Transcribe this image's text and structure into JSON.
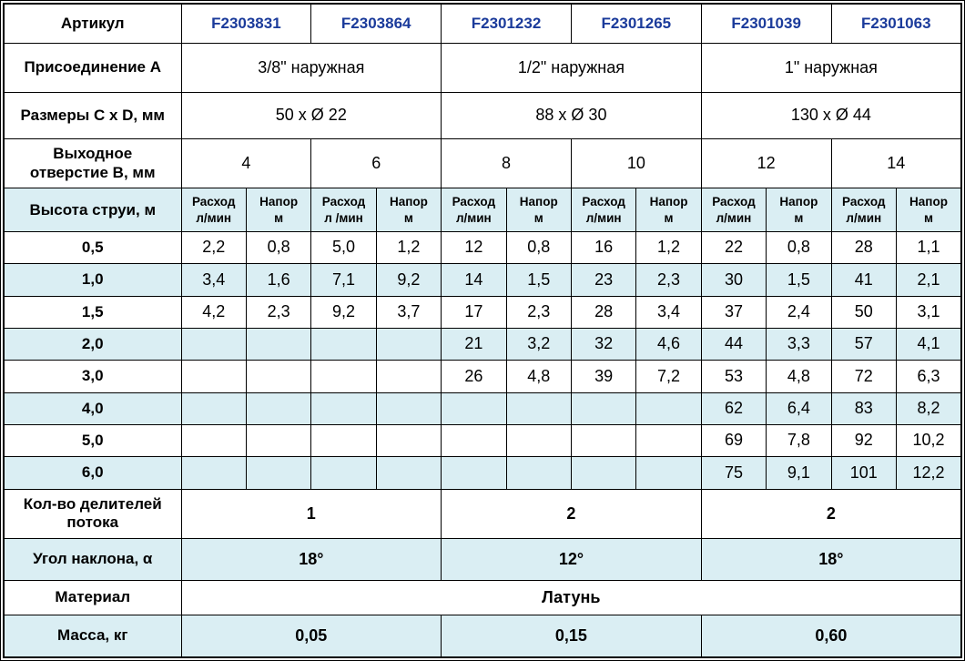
{
  "colors": {
    "row_alt_blue": "#daeef3",
    "article_blue": "#1b3b9b",
    "border_black": "#000000",
    "background": "#ffffff"
  },
  "table": {
    "rows": [
      {
        "name": "article-row",
        "alt": false,
        "cells": [
          {
            "text": "Артикул",
            "kind": "label",
            "span": 1
          },
          {
            "text": "F2303831",
            "kind": "article",
            "span": 2
          },
          {
            "text": "F2303864",
            "kind": "article",
            "span": 2
          },
          {
            "text": "F2301232",
            "kind": "article",
            "span": 2
          },
          {
            "text": "F2301265",
            "kind": "article",
            "span": 2
          },
          {
            "text": "F2301039",
            "kind": "article",
            "span": 2
          },
          {
            "text": "F2301063",
            "kind": "article",
            "span": 2
          }
        ]
      },
      {
        "name": "connection-row",
        "alt": false,
        "cells": [
          {
            "text": "Присоединение А",
            "kind": "label",
            "span": 1
          },
          {
            "text": "3/8\" наружная",
            "kind": "value",
            "span": 4
          },
          {
            "text": "1/2\" наружная",
            "kind": "value",
            "span": 4
          },
          {
            "text": "1\" наружная",
            "kind": "value",
            "span": 4
          }
        ]
      },
      {
        "name": "dimensions-row",
        "alt": false,
        "cells": [
          {
            "text": "Размеры C x D, мм",
            "kind": "label",
            "span": 1
          },
          {
            "text": "50 x Ø 22",
            "kind": "value",
            "span": 4
          },
          {
            "text": "88 x Ø 30",
            "kind": "value",
            "span": 4
          },
          {
            "text": "130 x Ø 44",
            "kind": "value",
            "span": 4
          }
        ]
      },
      {
        "name": "outlet-row",
        "alt": false,
        "cells": [
          {
            "text": "Выходное\nотверстие В, мм",
            "kind": "label",
            "span": 1
          },
          {
            "text": "4",
            "kind": "value",
            "span": 2
          },
          {
            "text": "6",
            "kind": "value",
            "span": 2
          },
          {
            "text": "8",
            "kind": "value",
            "span": 2
          },
          {
            "text": "10",
            "kind": "value",
            "span": 2
          },
          {
            "text": "12",
            "kind": "value",
            "span": 2
          },
          {
            "text": "14",
            "kind": "value",
            "span": 2
          }
        ]
      },
      {
        "name": "jet-height-header-row",
        "alt": true,
        "cells": [
          {
            "text": "Высота струи, м",
            "kind": "label",
            "span": 1
          },
          {
            "text": "Расход\nл/мин",
            "kind": "subhead",
            "span": 1
          },
          {
            "text": "Напор\nм",
            "kind": "subhead",
            "span": 1
          },
          {
            "text": "Расход\nл /мин",
            "kind": "subhead",
            "span": 1
          },
          {
            "text": "Напор\nм",
            "kind": "subhead",
            "span": 1
          },
          {
            "text": "Расход\nл/мин",
            "kind": "subhead",
            "span": 1
          },
          {
            "text": "Напор\nм",
            "kind": "subhead",
            "span": 1
          },
          {
            "text": "Расход\nл/мин",
            "kind": "subhead",
            "span": 1
          },
          {
            "text": "Напор\nм",
            "kind": "subhead",
            "span": 1
          },
          {
            "text": "Расход\nл/мин",
            "kind": "subhead",
            "span": 1
          },
          {
            "text": "Напор\nм",
            "kind": "subhead",
            "span": 1
          },
          {
            "text": "Расход\nл/мин",
            "kind": "subhead",
            "span": 1
          },
          {
            "text": "Напор\nм",
            "kind": "subhead",
            "span": 1
          }
        ]
      },
      {
        "name": "data-row-0-5",
        "alt": false,
        "cells": [
          {
            "text": "0,5",
            "kind": "label",
            "span": 1
          },
          {
            "text": "2,2",
            "kind": "value",
            "span": 1
          },
          {
            "text": "0,8",
            "kind": "value",
            "span": 1
          },
          {
            "text": "5,0",
            "kind": "value",
            "span": 1
          },
          {
            "text": "1,2",
            "kind": "value",
            "span": 1
          },
          {
            "text": "12",
            "kind": "value",
            "span": 1
          },
          {
            "text": "0,8",
            "kind": "value",
            "span": 1
          },
          {
            "text": "16",
            "kind": "value",
            "span": 1
          },
          {
            "text": "1,2",
            "kind": "value",
            "span": 1
          },
          {
            "text": "22",
            "kind": "value",
            "span": 1
          },
          {
            "text": "0,8",
            "kind": "value",
            "span": 1
          },
          {
            "text": "28",
            "kind": "value",
            "span": 1
          },
          {
            "text": "1,1",
            "kind": "value",
            "span": 1
          }
        ]
      },
      {
        "name": "data-row-1-0",
        "alt": true,
        "cells": [
          {
            "text": "1,0",
            "kind": "label",
            "span": 1
          },
          {
            "text": "3,4",
            "kind": "value",
            "span": 1
          },
          {
            "text": "1,6",
            "kind": "value",
            "span": 1
          },
          {
            "text": "7,1",
            "kind": "value",
            "span": 1
          },
          {
            "text": "9,2",
            "kind": "value",
            "span": 1
          },
          {
            "text": "14",
            "kind": "value",
            "span": 1
          },
          {
            "text": "1,5",
            "kind": "value",
            "span": 1
          },
          {
            "text": "23",
            "kind": "value",
            "span": 1
          },
          {
            "text": "2,3",
            "kind": "value",
            "span": 1
          },
          {
            "text": "30",
            "kind": "value",
            "span": 1
          },
          {
            "text": "1,5",
            "kind": "value",
            "span": 1
          },
          {
            "text": "41",
            "kind": "value",
            "span": 1
          },
          {
            "text": "2,1",
            "kind": "value",
            "span": 1
          }
        ]
      },
      {
        "name": "data-row-1-5",
        "alt": false,
        "cells": [
          {
            "text": "1,5",
            "kind": "label",
            "span": 1
          },
          {
            "text": "4,2",
            "kind": "value",
            "span": 1
          },
          {
            "text": "2,3",
            "kind": "value",
            "span": 1
          },
          {
            "text": "9,2",
            "kind": "value",
            "span": 1
          },
          {
            "text": "3,7",
            "kind": "value",
            "span": 1
          },
          {
            "text": "17",
            "kind": "value",
            "span": 1
          },
          {
            "text": "2,3",
            "kind": "value",
            "span": 1
          },
          {
            "text": "28",
            "kind": "value",
            "span": 1
          },
          {
            "text": "3,4",
            "kind": "value",
            "span": 1
          },
          {
            "text": "37",
            "kind": "value",
            "span": 1
          },
          {
            "text": "2,4",
            "kind": "value",
            "span": 1
          },
          {
            "text": "50",
            "kind": "value",
            "span": 1
          },
          {
            "text": "3,1",
            "kind": "value",
            "span": 1
          }
        ]
      },
      {
        "name": "data-row-2-0",
        "alt": true,
        "cells": [
          {
            "text": "2,0",
            "kind": "label",
            "span": 1
          },
          {
            "text": "",
            "kind": "value",
            "span": 1
          },
          {
            "text": "",
            "kind": "value",
            "span": 1
          },
          {
            "text": "",
            "kind": "value",
            "span": 1
          },
          {
            "text": "",
            "kind": "value",
            "span": 1
          },
          {
            "text": "21",
            "kind": "value",
            "span": 1
          },
          {
            "text": "3,2",
            "kind": "value",
            "span": 1
          },
          {
            "text": "32",
            "kind": "value",
            "span": 1
          },
          {
            "text": "4,6",
            "kind": "value",
            "span": 1
          },
          {
            "text": "44",
            "kind": "value",
            "span": 1
          },
          {
            "text": "3,3",
            "kind": "value",
            "span": 1
          },
          {
            "text": "57",
            "kind": "value",
            "span": 1
          },
          {
            "text": "4,1",
            "kind": "value",
            "span": 1
          }
        ]
      },
      {
        "name": "data-row-3-0",
        "alt": false,
        "cells": [
          {
            "text": "3,0",
            "kind": "label",
            "span": 1
          },
          {
            "text": "",
            "kind": "value",
            "span": 1
          },
          {
            "text": "",
            "kind": "value",
            "span": 1
          },
          {
            "text": "",
            "kind": "value",
            "span": 1
          },
          {
            "text": "",
            "kind": "value",
            "span": 1
          },
          {
            "text": "26",
            "kind": "value",
            "span": 1
          },
          {
            "text": "4,8",
            "kind": "value",
            "span": 1
          },
          {
            "text": "39",
            "kind": "value",
            "span": 1
          },
          {
            "text": "7,2",
            "kind": "value",
            "span": 1
          },
          {
            "text": "53",
            "kind": "value",
            "span": 1
          },
          {
            "text": "4,8",
            "kind": "value",
            "span": 1
          },
          {
            "text": "72",
            "kind": "value",
            "span": 1
          },
          {
            "text": "6,3",
            "kind": "value",
            "span": 1
          }
        ]
      },
      {
        "name": "data-row-4-0",
        "alt": true,
        "cells": [
          {
            "text": "4,0",
            "kind": "label",
            "span": 1
          },
          {
            "text": "",
            "kind": "value",
            "span": 1
          },
          {
            "text": "",
            "kind": "value",
            "span": 1
          },
          {
            "text": "",
            "kind": "value",
            "span": 1
          },
          {
            "text": "",
            "kind": "value",
            "span": 1
          },
          {
            "text": "",
            "kind": "value",
            "span": 1
          },
          {
            "text": "",
            "kind": "value",
            "span": 1
          },
          {
            "text": "",
            "kind": "value",
            "span": 1
          },
          {
            "text": "",
            "kind": "value",
            "span": 1
          },
          {
            "text": "62",
            "kind": "value",
            "span": 1
          },
          {
            "text": "6,4",
            "kind": "value",
            "span": 1
          },
          {
            "text": "83",
            "kind": "value",
            "span": 1
          },
          {
            "text": "8,2",
            "kind": "value",
            "span": 1
          }
        ]
      },
      {
        "name": "data-row-5-0",
        "alt": false,
        "cells": [
          {
            "text": "5,0",
            "kind": "label",
            "span": 1
          },
          {
            "text": "",
            "kind": "value",
            "span": 1
          },
          {
            "text": "",
            "kind": "value",
            "span": 1
          },
          {
            "text": "",
            "kind": "value",
            "span": 1
          },
          {
            "text": "",
            "kind": "value",
            "span": 1
          },
          {
            "text": "",
            "kind": "value",
            "span": 1
          },
          {
            "text": "",
            "kind": "value",
            "span": 1
          },
          {
            "text": "",
            "kind": "value",
            "span": 1
          },
          {
            "text": "",
            "kind": "value",
            "span": 1
          },
          {
            "text": "69",
            "kind": "value",
            "span": 1
          },
          {
            "text": "7,8",
            "kind": "value",
            "span": 1
          },
          {
            "text": "92",
            "kind": "value",
            "span": 1
          },
          {
            "text": "10,2",
            "kind": "value",
            "span": 1
          }
        ]
      },
      {
        "name": "data-row-6-0",
        "alt": true,
        "cells": [
          {
            "text": "6,0",
            "kind": "label",
            "span": 1
          },
          {
            "text": "",
            "kind": "value",
            "span": 1
          },
          {
            "text": "",
            "kind": "value",
            "span": 1
          },
          {
            "text": "",
            "kind": "value",
            "span": 1
          },
          {
            "text": "",
            "kind": "value",
            "span": 1
          },
          {
            "text": "",
            "kind": "value",
            "span": 1
          },
          {
            "text": "",
            "kind": "value",
            "span": 1
          },
          {
            "text": "",
            "kind": "value",
            "span": 1
          },
          {
            "text": "",
            "kind": "value",
            "span": 1
          },
          {
            "text": "75",
            "kind": "value",
            "span": 1
          },
          {
            "text": "9,1",
            "kind": "value",
            "span": 1
          },
          {
            "text": "101",
            "kind": "value",
            "span": 1
          },
          {
            "text": "12,2",
            "kind": "value",
            "span": 1
          }
        ]
      },
      {
        "name": "flow-dividers-row",
        "alt": false,
        "cells": [
          {
            "text": "Кол-во делителей\nпотока",
            "kind": "label",
            "span": 1
          },
          {
            "text": "1",
            "kind": "bold",
            "span": 4
          },
          {
            "text": "2",
            "kind": "bold",
            "span": 4
          },
          {
            "text": "2",
            "kind": "bold",
            "span": 4
          }
        ]
      },
      {
        "name": "angle-row",
        "alt": true,
        "cells": [
          {
            "text": "Угол наклона, α",
            "kind": "label",
            "span": 1
          },
          {
            "text": "18°",
            "kind": "bold",
            "span": 4
          },
          {
            "text": "12°",
            "kind": "bold",
            "span": 4
          },
          {
            "text": "18°",
            "kind": "bold",
            "span": 4
          }
        ]
      },
      {
        "name": "material-row",
        "alt": false,
        "cells": [
          {
            "text": "Материал",
            "kind": "label",
            "span": 1
          },
          {
            "text": "Латунь",
            "kind": "bold",
            "span": 12
          }
        ]
      },
      {
        "name": "mass-row",
        "alt": true,
        "cells": [
          {
            "text": "Масса, кг",
            "kind": "label",
            "span": 1
          },
          {
            "text": "0,05",
            "kind": "bold",
            "span": 4
          },
          {
            "text": "0,15",
            "kind": "bold",
            "span": 4
          },
          {
            "text": "0,60",
            "kind": "bold",
            "span": 4
          }
        ]
      }
    ]
  }
}
